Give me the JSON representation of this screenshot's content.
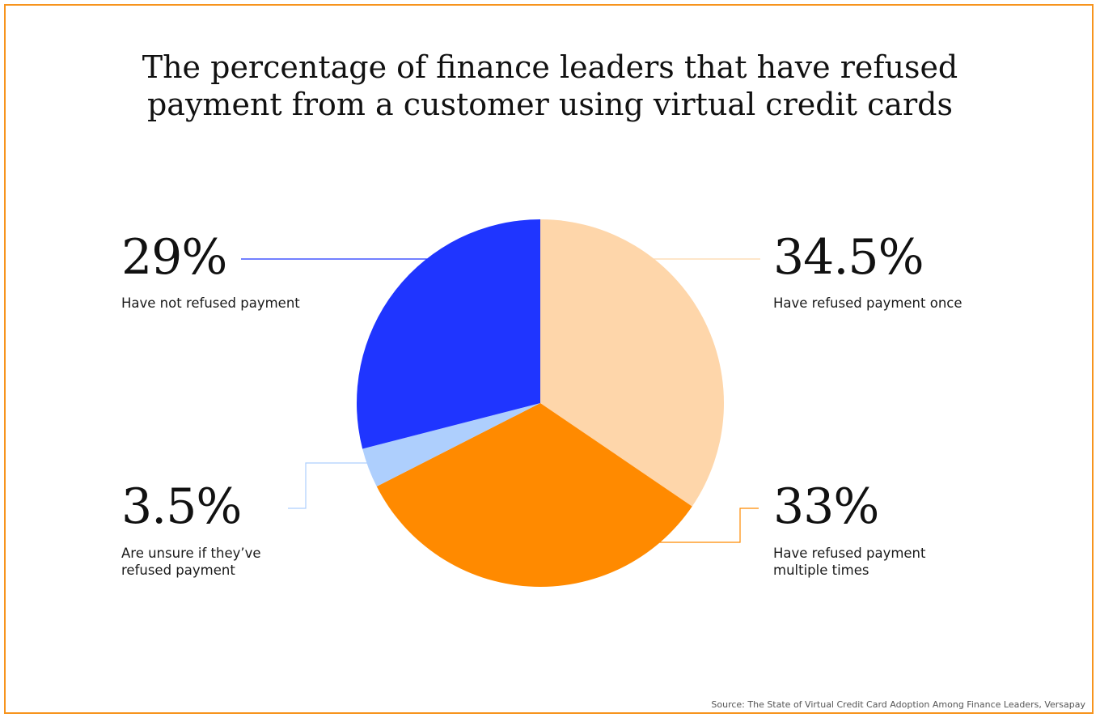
{
  "title_lines": [
    "The percentage of finance leaders that have refused",
    "payment from a customer using virtual credit cards"
  ],
  "source": "Source: The State of Virtual Credit Card Adoption Among Finance Leaders, Versapay",
  "colors": {
    "frame": "#f7941d",
    "refused_once": "#fed6aa",
    "refused_multiple": "#ff8a00",
    "unsure": "#aecffd",
    "not_refused": "#1f35ff"
  },
  "labels": {
    "refused_once": {
      "pct": "34.5%",
      "lines": [
        "Have refused payment once"
      ]
    },
    "refused_multiple": {
      "pct": "33%",
      "lines": [
        "Have refused payment",
        "multiple times"
      ]
    },
    "unsure": {
      "pct": "3.5%",
      "lines": [
        "Are unsure if they’ve",
        "refused payment"
      ]
    },
    "not_refused": {
      "pct": "29%",
      "lines": [
        "Have not refused payment"
      ]
    }
  },
  "chart_data": {
    "type": "pie",
    "title": "The percentage of finance leaders that have refused payment from a customer using virtual credit cards",
    "start": "top, clockwise",
    "slices": [
      {
        "key": "refused_once",
        "label": "Have refused payment once",
        "value": 34.5,
        "color": "#fed6aa"
      },
      {
        "key": "refused_multiple",
        "label": "Have refused payment multiple times",
        "value": 33,
        "color": "#ff8a00"
      },
      {
        "key": "unsure",
        "label": "Are unsure if they’ve refused payment",
        "value": 3.5,
        "color": "#aecffd"
      },
      {
        "key": "not_refused",
        "label": "Have not refused payment",
        "value": 29,
        "color": "#1f35ff"
      }
    ]
  }
}
